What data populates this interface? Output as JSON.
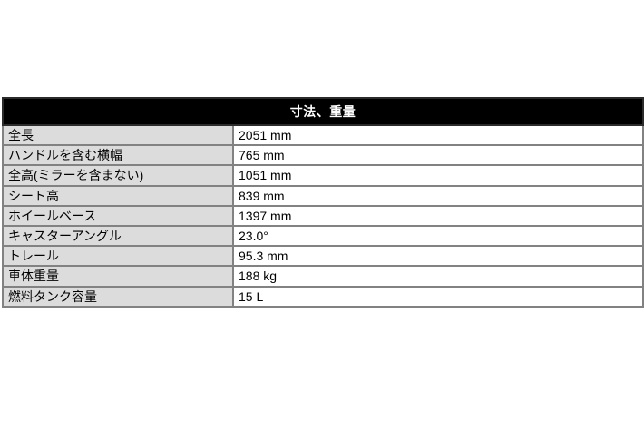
{
  "page": {
    "background_color": "#ffffff"
  },
  "table": {
    "title": "寸法、重量",
    "colors": {
      "header_bg": "#000000",
      "header_text": "#ffffff",
      "label_bg": "#dcdcdc",
      "value_bg": "#ffffff",
      "cell_text": "#000000",
      "inner_border": "#828282",
      "outer_border": "#2b2b2b"
    },
    "rows": [
      {
        "label": "全長",
        "value": "2051 mm"
      },
      {
        "label": "ハンドルを含む横幅",
        "value": "765 mm"
      },
      {
        "label": "全高(ミラーを含まない)",
        "value": "1051 mm"
      },
      {
        "label": "シート高",
        "value": "839 mm"
      },
      {
        "label": "ホイールベース",
        "value": "1397 mm"
      },
      {
        "label": "キャスターアングル",
        "value": "23.0°"
      },
      {
        "label": "トレール",
        "value": "95.3 mm"
      },
      {
        "label": "車体重量",
        "value": "188 kg"
      },
      {
        "label": "燃料タンク容量",
        "value": "15 L"
      }
    ]
  }
}
